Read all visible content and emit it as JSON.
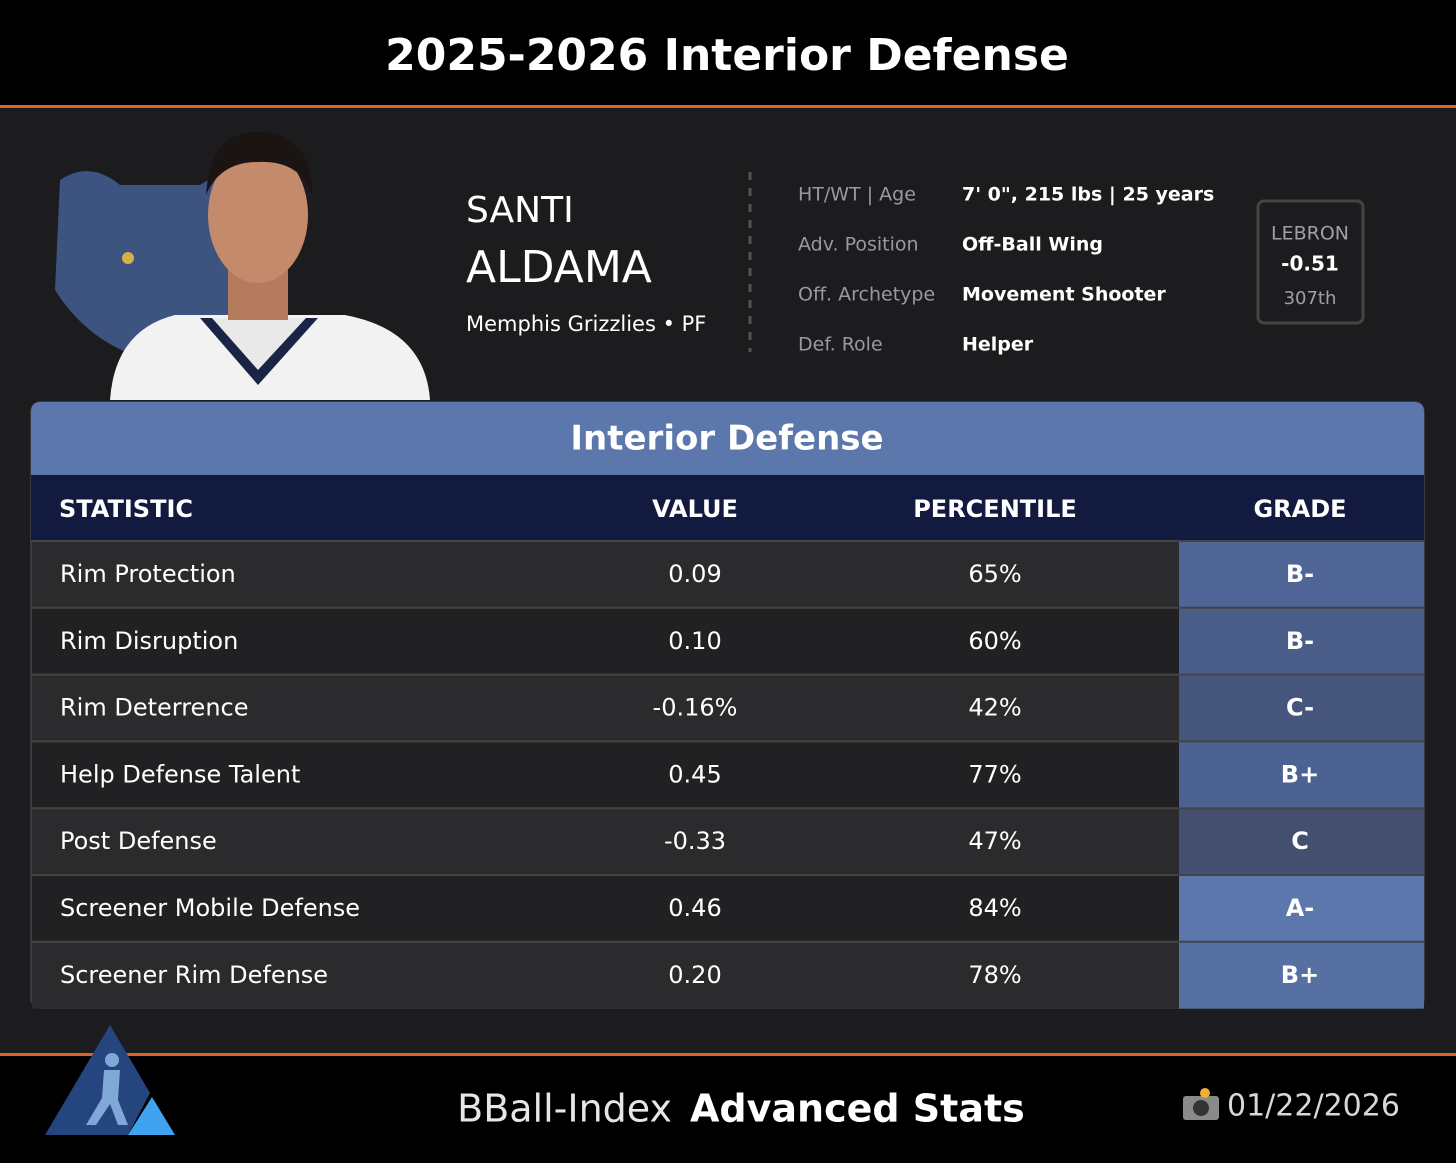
{
  "header": {
    "title": "2025-2026 Interior Defense"
  },
  "player": {
    "first_name": "SANTI",
    "last_name": "ALDAMA",
    "team_position": "Memphis Grizzlies • PF",
    "info": [
      {
        "label": "HT/WT | Age",
        "value": "7' 0\", 215 lbs | 25 years"
      },
      {
        "label": "Adv. Position",
        "value": "Off-Ball Wing"
      },
      {
        "label": "Off. Archetype",
        "value": "Movement Shooter"
      },
      {
        "label": "Def. Role",
        "value": "Helper"
      }
    ],
    "lebron": {
      "label": "LEBRON",
      "value": "-0.51",
      "rank": "307th"
    }
  },
  "table": {
    "title": "Interior Defense",
    "columns": [
      "STATISTIC",
      "VALUE",
      "PERCENTILE",
      "GRADE"
    ],
    "rows": [
      {
        "cells": [
          "Rim Protection",
          "0.09",
          "65%",
          "B-"
        ],
        "grade_color": "#4f6595"
      },
      {
        "cells": [
          "Rim Disruption",
          "0.10",
          "60%",
          "B-"
        ],
        "grade_color": "#4a5d88"
      },
      {
        "cells": [
          "Rim Deterrence",
          "-0.16%",
          "42%",
          "C-"
        ],
        "grade_color": "#46557c"
      },
      {
        "cells": [
          "Help Defense Talent",
          "0.45",
          "77%",
          "B+"
        ],
        "grade_color": "#4c6293"
      },
      {
        "cells": [
          "Post Defense",
          "-0.33",
          "47%",
          "C"
        ],
        "grade_color": "#444f70"
      },
      {
        "cells": [
          "Screener Mobile Defense",
          "0.46",
          "84%",
          "A-"
        ],
        "grade_color": "#5b77ab"
      },
      {
        "cells": [
          "Screener Rim Defense",
          "0.20",
          "78%",
          "B+"
        ],
        "grade_color": "#5670a3"
      }
    ]
  },
  "footer": {
    "brand": "BBall-Index",
    "tagline": "Advanced Stats",
    "date": "01/22/2026"
  }
}
